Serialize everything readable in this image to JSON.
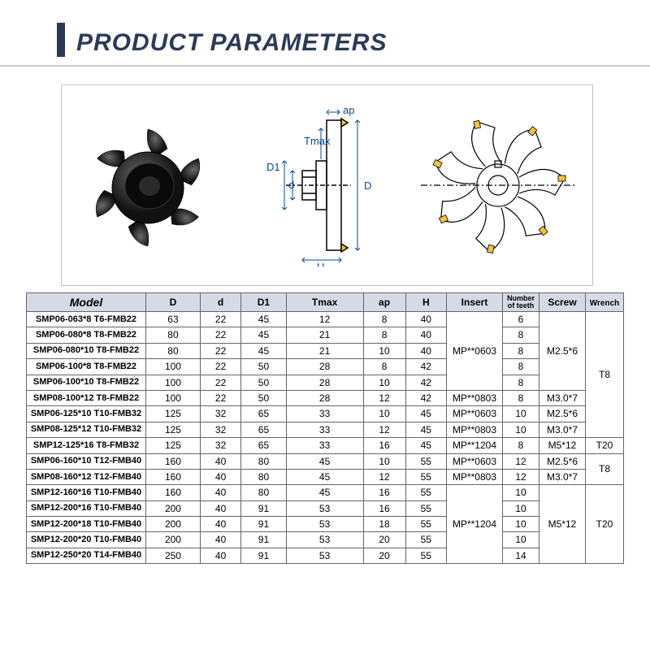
{
  "title": "PRODUCT PARAMETERS",
  "colors": {
    "accent": "#2a3a5a",
    "rule": "#c7c9cf",
    "th_bg": "#d4dae6",
    "border": "#666666",
    "diag_label": "#004a9f",
    "insert_tip": "#f5c23d"
  },
  "diagram_labels": {
    "tmax": "Tmax",
    "d1": "D1",
    "d": "d",
    "ap": "ap",
    "H": "H",
    "D": "D"
  },
  "columns": [
    "Model",
    "D",
    "d",
    "D1",
    "Tmax",
    "ap",
    "H",
    "Insert",
    "Number of teeth",
    "Screw",
    "Wrench"
  ],
  "rows": [
    {
      "model": "SMP06-063*8 T6-FMB22",
      "D": "63",
      "d": "22",
      "D1": "45",
      "Tmax": "12",
      "ap": "8",
      "H": "40",
      "teeth": "6"
    },
    {
      "model": "SMP06-080*8 T8-FMB22",
      "D": "80",
      "d": "22",
      "D1": "45",
      "Tmax": "21",
      "ap": "8",
      "H": "40",
      "teeth": "8"
    },
    {
      "model": "SMP06-080*10 T8-FMB22",
      "D": "80",
      "d": "22",
      "D1": "45",
      "Tmax": "21",
      "ap": "10",
      "H": "40",
      "teeth": "8"
    },
    {
      "model": "SMP06-100*8 T8-FMB22",
      "D": "100",
      "d": "22",
      "D1": "50",
      "Tmax": "28",
      "ap": "8",
      "H": "42",
      "teeth": "8"
    },
    {
      "model": "SMP06-100*10 T8-FMB22",
      "D": "100",
      "d": "22",
      "D1": "50",
      "Tmax": "28",
      "ap": "10",
      "H": "42",
      "teeth": "8"
    },
    {
      "model": "SMP08-100*12 T8-FMB22",
      "D": "100",
      "d": "22",
      "D1": "50",
      "Tmax": "28",
      "ap": "12",
      "H": "42",
      "teeth": "8"
    },
    {
      "model": "SMP06-125*10 T10-FMB32",
      "D": "125",
      "d": "32",
      "D1": "65",
      "Tmax": "33",
      "ap": "10",
      "H": "45",
      "teeth": "10"
    },
    {
      "model": "SMP08-125*12 T10-FMB32",
      "D": "125",
      "d": "32",
      "D1": "65",
      "Tmax": "33",
      "ap": "12",
      "H": "45",
      "teeth": "10"
    },
    {
      "model": "SMP12-125*16 T8-FMB32",
      "D": "125",
      "d": "32",
      "D1": "65",
      "Tmax": "33",
      "ap": "16",
      "H": "45",
      "teeth": "8"
    },
    {
      "model": "SMP06-160*10 T12-FMB40",
      "D": "160",
      "d": "40",
      "D1": "80",
      "Tmax": "45",
      "ap": "10",
      "H": "55",
      "teeth": "12"
    },
    {
      "model": "SMP08-160*12 T12-FMB40",
      "D": "160",
      "d": "40",
      "D1": "80",
      "Tmax": "45",
      "ap": "12",
      "H": "55",
      "teeth": "12"
    },
    {
      "model": "SMP12-160*16 T10-FMB40",
      "D": "160",
      "d": "40",
      "D1": "80",
      "Tmax": "45",
      "ap": "16",
      "H": "55",
      "teeth": "10"
    },
    {
      "model": "SMP12-200*16 T10-FMB40",
      "D": "200",
      "d": "40",
      "D1": "91",
      "Tmax": "53",
      "ap": "16",
      "H": "55",
      "teeth": "10"
    },
    {
      "model": "SMP12-200*18 T10-FMB40",
      "D": "200",
      "d": "40",
      "D1": "91",
      "Tmax": "53",
      "ap": "18",
      "H": "55",
      "teeth": "10"
    },
    {
      "model": "SMP12-200*20 T10-FMB40",
      "D": "200",
      "d": "40",
      "D1": "91",
      "Tmax": "53",
      "ap": "20",
      "H": "55",
      "teeth": "10"
    },
    {
      "model": "SMP12-250*20 T14-FMB40",
      "D": "250",
      "d": "40",
      "D1": "91",
      "Tmax": "53",
      "ap": "20",
      "H": "55",
      "teeth": "14"
    }
  ],
  "merges": {
    "insert": [
      {
        "start": 0,
        "span": 5,
        "value": "MP**0603"
      },
      {
        "start": 5,
        "span": 1,
        "value": "MP**0803"
      },
      {
        "start": 6,
        "span": 1,
        "value": "MP**0603"
      },
      {
        "start": 7,
        "span": 1,
        "value": "MP**0803"
      },
      {
        "start": 8,
        "span": 1,
        "value": "MP**1204"
      },
      {
        "start": 9,
        "span": 1,
        "value": "MP**0603"
      },
      {
        "start": 10,
        "span": 1,
        "value": "MP**0803"
      },
      {
        "start": 11,
        "span": 5,
        "value": "MP**1204"
      }
    ],
    "screw": [
      {
        "start": 0,
        "span": 5,
        "value": "M2.5*6"
      },
      {
        "start": 5,
        "span": 1,
        "value": "M3.0*7"
      },
      {
        "start": 6,
        "span": 1,
        "value": "M2.5*6"
      },
      {
        "start": 7,
        "span": 1,
        "value": "M3.0*7"
      },
      {
        "start": 8,
        "span": 1,
        "value": "M5*12"
      },
      {
        "start": 9,
        "span": 1,
        "value": "M2.5*6"
      },
      {
        "start": 10,
        "span": 1,
        "value": "M3.0*7"
      },
      {
        "start": 11,
        "span": 5,
        "value": "M5*12"
      }
    ],
    "wrench": [
      {
        "start": 0,
        "span": 8,
        "value": "T8"
      },
      {
        "start": 8,
        "span": 1,
        "value": "T20"
      },
      {
        "start": 9,
        "span": 2,
        "value": "T8"
      },
      {
        "start": 11,
        "span": 5,
        "value": "T20"
      }
    ]
  }
}
